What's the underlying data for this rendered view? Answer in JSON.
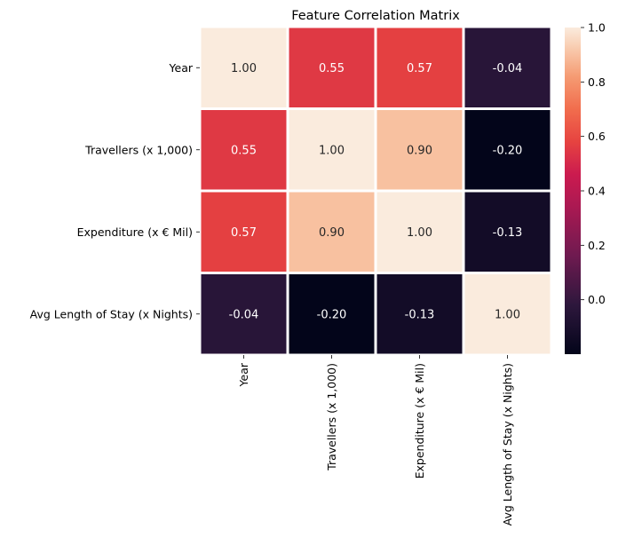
{
  "chart_data": {
    "type": "heatmap",
    "title": "Feature Correlation Matrix",
    "row_labels": [
      "Year",
      "Travellers (x 1,000)",
      "Expenditure (x € Mil)",
      "Avg Length of Stay (x Nights)"
    ],
    "col_labels": [
      "Year",
      "Travellers (x 1,000)",
      "Expenditure (x € Mil)",
      "Avg Length of Stay (x Nights)"
    ],
    "values": [
      [
        1.0,
        0.55,
        0.57,
        -0.04
      ],
      [
        0.55,
        1.0,
        0.9,
        -0.2
      ],
      [
        0.57,
        0.9,
        1.0,
        -0.13
      ],
      [
        -0.04,
        -0.2,
        -0.13,
        1.0
      ]
    ],
    "value_format": "0.00",
    "colorbar": {
      "vmin": -0.2,
      "vmax": 1.0,
      "ticks": [
        0.0,
        0.2,
        0.4,
        0.6,
        0.8,
        1.0
      ],
      "tick_labels": [
        "0.0",
        "0.2",
        "0.4",
        "0.6",
        "0.8",
        "1.0"
      ]
    },
    "colormap": "rocket",
    "xlabel": "",
    "ylabel": "",
    "grid": false
  }
}
